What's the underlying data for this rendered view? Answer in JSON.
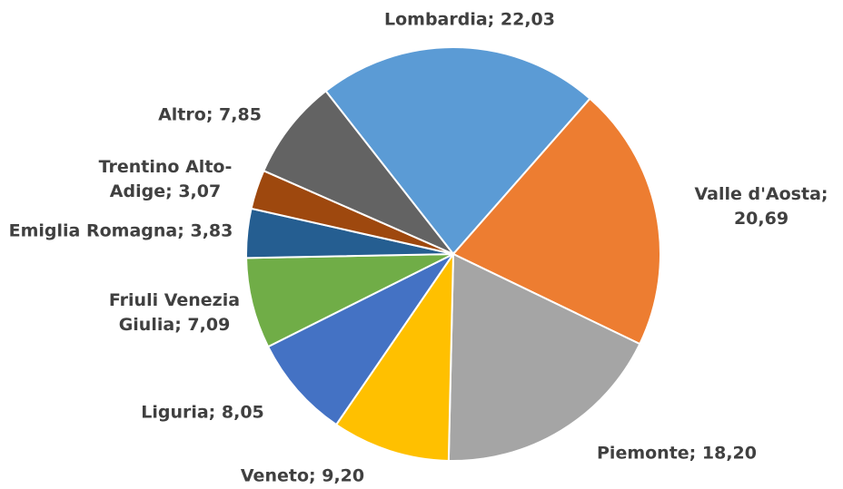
{
  "chart_data": {
    "type": "pie",
    "categories": [
      "Lombardia",
      "Valle d'Aosta",
      "Piemonte",
      "Veneto",
      "Liguria",
      "Friuli Venezia Giulia",
      "Emiglia Romagna",
      "Trentino Alto-Adige",
      "Altro"
    ],
    "values": [
      22.03,
      20.69,
      18.2,
      9.2,
      8.05,
      7.09,
      3.83,
      3.07,
      7.85
    ],
    "value_labels": [
      "22,03",
      "20,69",
      "18,20",
      "9,20",
      "8,05",
      "7,09",
      "3,83",
      "3,07",
      "7,85"
    ],
    "label_separator": "; ",
    "colors": [
      "#5b9bd5",
      "#ed7d31",
      "#a5a5a5",
      "#ffc000",
      "#4472c4",
      "#70ad47",
      "#255e91",
      "#9e480e",
      "#636363"
    ]
  }
}
